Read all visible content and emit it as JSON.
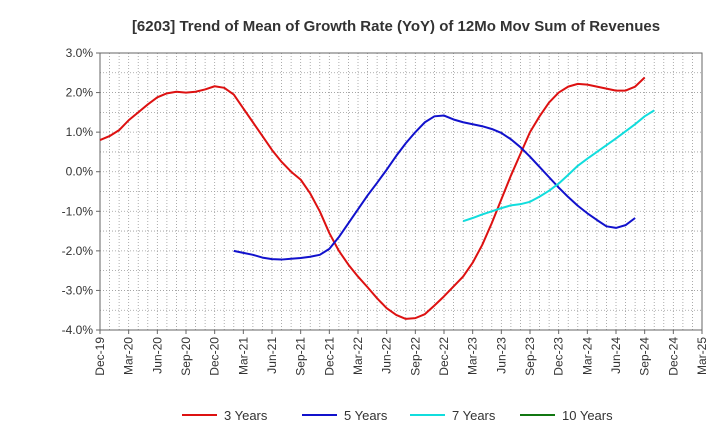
{
  "chart_data": {
    "type": "line",
    "title": "[6203]  Trend of Mean of Growth Rate (YoY) of 12Mo Mov Sum of Revenues",
    "xlabel": "",
    "ylabel": "",
    "ylim": [
      -4.0,
      3.0
    ],
    "yticks": [
      3.0,
      2.0,
      1.0,
      0.0,
      -1.0,
      -2.0,
      -3.0,
      -4.0
    ],
    "ytick_labels": [
      "3.0%",
      "2.0%",
      "1.0%",
      "0.0%",
      "-1.0%",
      "-2.0%",
      "-3.0%",
      "-4.0%"
    ],
    "xlim_months": [
      0,
      63
    ],
    "xtick_labels": [
      "Dec-19",
      "Mar-20",
      "Jun-20",
      "Sep-20",
      "Dec-20",
      "Mar-21",
      "Jun-21",
      "Sep-21",
      "Dec-21",
      "Mar-22",
      "Jun-22",
      "Sep-22",
      "Dec-22",
      "Mar-23",
      "Jun-23",
      "Sep-23",
      "Dec-23",
      "Mar-24",
      "Jun-24",
      "Sep-24",
      "Dec-24",
      "Mar-25"
    ],
    "grid": true,
    "legend_position": "bottom",
    "series": [
      {
        "name": "3 Years",
        "color": "#dd1111",
        "start_month": 0,
        "values": [
          0.8,
          0.9,
          1.05,
          1.3,
          1.5,
          1.7,
          1.88,
          1.98,
          2.02,
          2.0,
          2.02,
          2.08,
          2.16,
          2.12,
          1.95,
          1.6,
          1.25,
          0.9,
          0.55,
          0.25,
          0.0,
          -0.2,
          -0.55,
          -1.0,
          -1.55,
          -2.0,
          -2.35,
          -2.65,
          -2.92,
          -3.2,
          -3.45,
          -3.62,
          -3.72,
          -3.7,
          -3.6,
          -3.38,
          -3.15,
          -2.9,
          -2.65,
          -2.3,
          -1.85,
          -1.3,
          -0.7,
          -0.1,
          0.45,
          1.0,
          1.4,
          1.75,
          2.0,
          2.15,
          2.22,
          2.2,
          2.15,
          2.1,
          2.05,
          2.05,
          2.15,
          2.38
        ]
      },
      {
        "name": "5 Years",
        "color": "#1111cc",
        "start_month": 14,
        "values": [
          -2.0,
          -2.05,
          -2.1,
          -2.17,
          -2.21,
          -2.22,
          -2.2,
          -2.18,
          -2.15,
          -2.1,
          -1.95,
          -1.65,
          -1.3,
          -0.95,
          -0.6,
          -0.28,
          0.05,
          0.4,
          0.72,
          1.0,
          1.25,
          1.4,
          1.42,
          1.32,
          1.25,
          1.2,
          1.15,
          1.08,
          0.98,
          0.82,
          0.62,
          0.38,
          0.12,
          -0.14,
          -0.4,
          -0.64,
          -0.86,
          -1.05,
          -1.22,
          -1.38,
          -1.42,
          -1.35,
          -1.17
        ]
      },
      {
        "name": "7 Years",
        "color": "#11dddd",
        "start_month": 38,
        "values": [
          -1.25,
          -1.17,
          -1.08,
          -1.0,
          -0.92,
          -0.85,
          -0.82,
          -0.76,
          -0.63,
          -0.48,
          -0.3,
          -0.08,
          0.15,
          0.33,
          0.5,
          0.67,
          0.84,
          1.02,
          1.2,
          1.4,
          1.55
        ]
      },
      {
        "name": "10 Years",
        "color": "#117711",
        "start_month": 0,
        "values": []
      }
    ]
  }
}
